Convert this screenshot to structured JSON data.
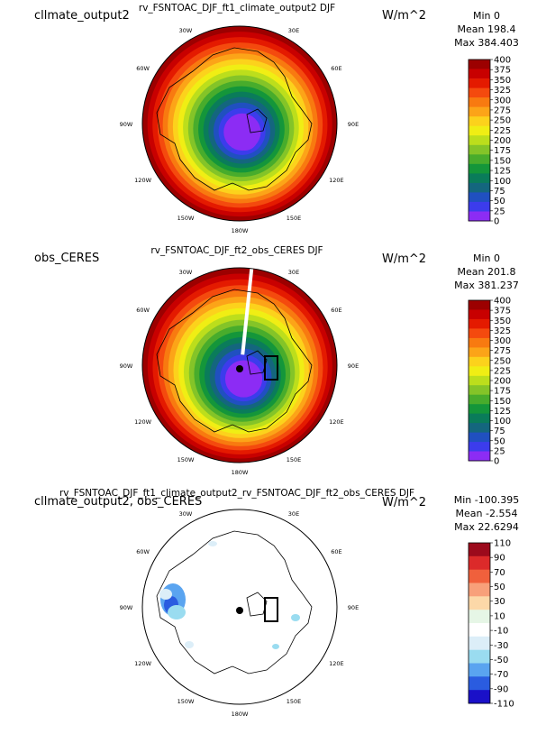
{
  "chart_data": [
    {
      "type": "heatmap",
      "projection": "north polar stereographic",
      "left_label": "cllmate_output2",
      "title": "rv_FSNTOAC_DJF_ft1_climate_output2  DJF",
      "units": "W/m^2",
      "stats": {
        "min": "Min 0",
        "mean": "Mean 198.4",
        "max": "Max 384.403"
      },
      "colorbar_levels": [
        "400",
        "375",
        "350",
        "325",
        "300",
        "275",
        "250",
        "225",
        "200",
        "175",
        "150",
        "125",
        "100",
        "75",
        "50",
        "25",
        "0"
      ],
      "colorbar_colors": [
        "#9c0000",
        "#c80000",
        "#e41a00",
        "#f44a0e",
        "#f87a10",
        "#fca418",
        "#fcd21c",
        "#f0ee14",
        "#bcde1c",
        "#84c428",
        "#48ac2c",
        "#14963a",
        "#0a7c5a",
        "#14667e",
        "#2050c0",
        "#3c3cec",
        "#8c2cf4"
      ],
      "longitude_labels": [
        "30E",
        "30W",
        "60E",
        "60W",
        "90E",
        "90W",
        "120E",
        "120W",
        "150E",
        "150W",
        "180W"
      ]
    },
    {
      "type": "heatmap",
      "projection": "north polar stereographic",
      "left_label": "obs_CERES",
      "title": "rv_FSNTOAC_DJF_ft2_obs_CERES  DJF",
      "units": "W/m^2",
      "stats": {
        "min": "Min 0",
        "mean": "Mean 201.8",
        "max": "Max 381.237"
      },
      "colorbar_levels": [
        "400",
        "375",
        "350",
        "325",
        "300",
        "275",
        "250",
        "225",
        "200",
        "175",
        "150",
        "125",
        "100",
        "75",
        "50",
        "25",
        "0"
      ],
      "colorbar_colors": [
        "#9c0000",
        "#c80000",
        "#e41a00",
        "#f44a0e",
        "#f87a10",
        "#fca418",
        "#fcd21c",
        "#f0ee14",
        "#bcde1c",
        "#84c428",
        "#48ac2c",
        "#14963a",
        "#0a7c5a",
        "#14667e",
        "#2050c0",
        "#3c3cec",
        "#8c2cf4"
      ],
      "longitude_labels": [
        "30E",
        "30W",
        "60E",
        "60W",
        "90E",
        "90W",
        "120E",
        "120W",
        "150E",
        "150W",
        "180W"
      ]
    },
    {
      "type": "heatmap",
      "projection": "north polar stereographic",
      "left_label": "cllmate_output2, obs_CERES",
      "title": "rv_FSNTOAC_DJF_ft1_climate_output2_rv_FSNTOAC_DJF_ft2_obs_CERES  DJF",
      "units": "W/m^2",
      "stats": {
        "min": "Min -100.395",
        "mean": "Mean -2.554",
        "max": "Max 22.6294"
      },
      "colorbar_levels": [
        "110",
        "90",
        "70",
        "50",
        "30",
        "10",
        "-10",
        "-30",
        "-50",
        "-70",
        "-90",
        "-110"
      ],
      "colorbar_colors": [
        "#9c0a1c",
        "#dc2a2a",
        "#f0603c",
        "#f8a07a",
        "#fcd8a8",
        "#e6f6e6",
        "#ffffff",
        "#dceef8",
        "#9adcf0",
        "#5aa4f0",
        "#2a5ce0",
        "#1a10c8"
      ],
      "longitude_labels": [
        "30E",
        "30W",
        "60E",
        "60W",
        "90E",
        "90W",
        "120E",
        "120W",
        "150E",
        "150W",
        "180W"
      ]
    }
  ]
}
